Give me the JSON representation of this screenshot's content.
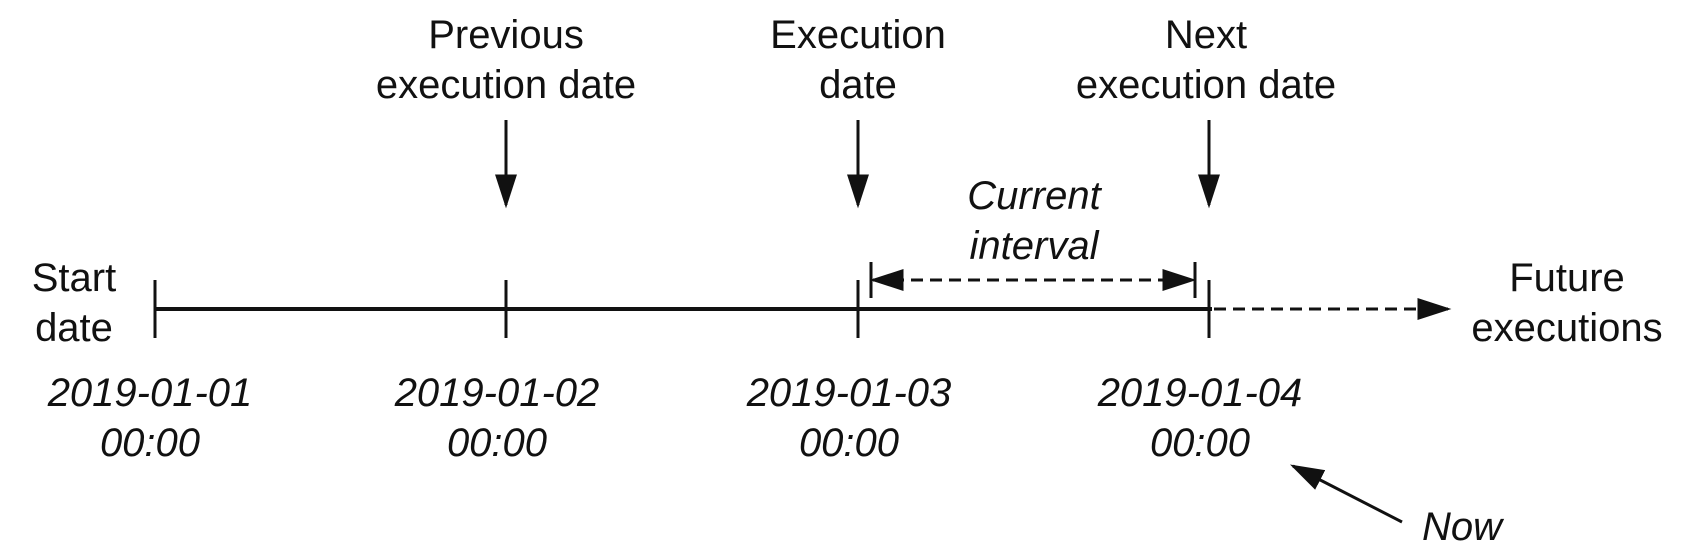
{
  "labels": {
    "start_line1": "Start",
    "start_line2": "date",
    "previous_line1": "Previous",
    "previous_line2": "execution date",
    "execution_line1": "Execution",
    "execution_line2": "date",
    "next_line1": "Next",
    "next_line2": "execution date",
    "current_line1": "Current",
    "current_line2": "interval",
    "future_line1": "Future",
    "future_line2": "executions",
    "now": "Now"
  },
  "dates": [
    {
      "date": "2019-01-01",
      "time": "00:00"
    },
    {
      "date": "2019-01-02",
      "time": "00:00"
    },
    {
      "date": "2019-01-03",
      "time": "00:00"
    },
    {
      "date": "2019-01-04",
      "time": "00:00"
    }
  ],
  "colors": {
    "ink": "#111111",
    "background": "#ffffff"
  }
}
